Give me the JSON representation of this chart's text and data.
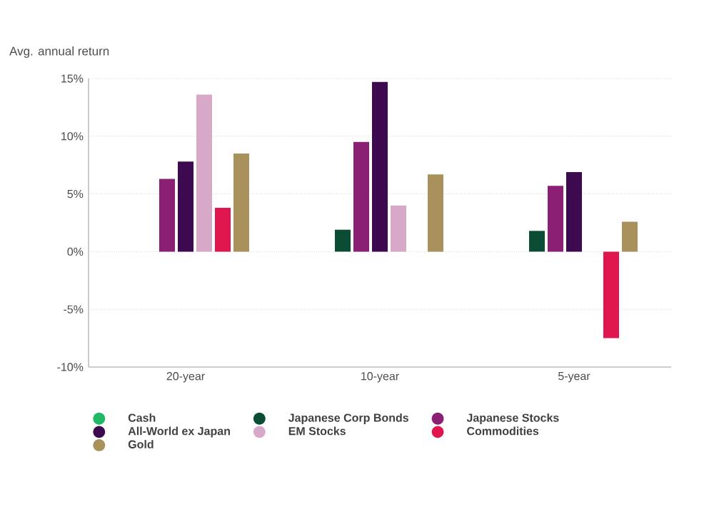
{
  "chart_data": {
    "type": "bar",
    "ylabel": "Avg. annual return",
    "categories": [
      "20-year",
      "10-year",
      "5-year"
    ],
    "series": [
      {
        "name": "Cash",
        "color": "#1fb864",
        "values": [
          null,
          null,
          null
        ]
      },
      {
        "name": "Japanese Corp Bonds",
        "color": "#0b4d34",
        "values": [
          null,
          1.9,
          1.8
        ]
      },
      {
        "name": "Japanese Stocks",
        "color": "#8b1f73",
        "values": [
          6.3,
          9.5,
          5.7
        ]
      },
      {
        "name": "All-World ex Japan",
        "color": "#3d0a4f",
        "values": [
          7.8,
          14.7,
          6.9
        ]
      },
      {
        "name": "EM Stocks",
        "color": "#d8a8c8",
        "values": [
          13.6,
          4.0,
          null
        ]
      },
      {
        "name": "Commodities",
        "color": "#e0174e",
        "values": [
          3.8,
          null,
          -7.5
        ]
      },
      {
        "name": "Gold",
        "color": "#a8915a",
        "values": [
          8.5,
          6.7,
          2.6
        ]
      }
    ],
    "ylim": [
      -10,
      15
    ],
    "yticks": [
      {
        "value": -10,
        "label": "-10%"
      },
      {
        "value": -5,
        "label": "-5%"
      },
      {
        "value": 0,
        "label": "0%"
      },
      {
        "value": 5,
        "label": "5%"
      },
      {
        "value": 10,
        "label": "10%"
      },
      {
        "value": 15,
        "label": "15%"
      }
    ],
    "grid": "y",
    "legend": "bottom"
  }
}
